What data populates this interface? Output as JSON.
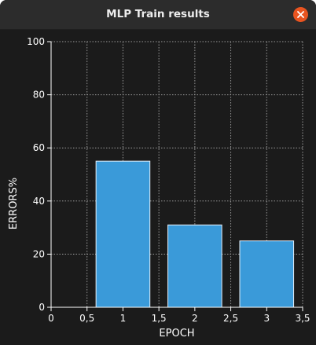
{
  "window": {
    "title": "MLP Train results"
  },
  "icons": {
    "close": "close-icon"
  },
  "colors": {
    "close_button": "#e95420",
    "bar_fill": "#3a9ad9",
    "bar_stroke": "#e6f0fa",
    "background": "#1b1b1b",
    "text": "#ffffff",
    "grid": "#9a9a9a"
  },
  "chart_data": {
    "type": "bar",
    "title": "",
    "xlabel": "EPOCH",
    "ylabel": "ERRORS%",
    "xlim": [
      0,
      3.5
    ],
    "ylim": [
      0,
      100
    ],
    "x_ticks": [
      "0",
      "0,5",
      "1",
      "1,5",
      "2",
      "2,5",
      "3",
      "3,5"
    ],
    "y_ticks": [
      "0",
      "20",
      "40",
      "60",
      "80",
      "100"
    ],
    "grid": true,
    "bar_width": 0.75,
    "x": [
      1,
      2,
      3
    ],
    "values": [
      55,
      31,
      25
    ]
  }
}
